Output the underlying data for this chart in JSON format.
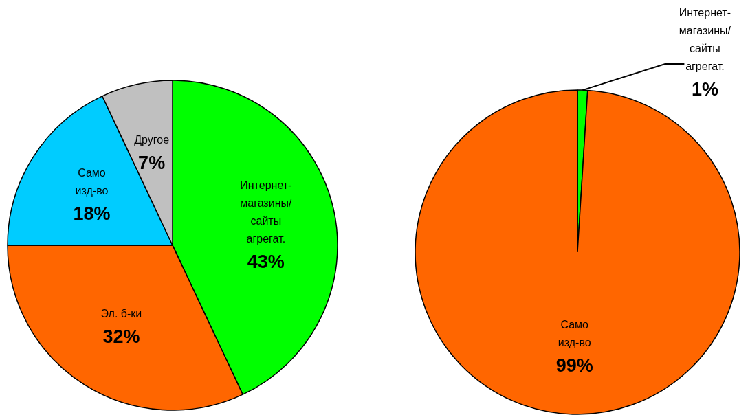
{
  "chart_data": [
    {
      "type": "pie",
      "categories": [
        "Интернет-\nмагазины/\nсайты\nагрегат.",
        "Эл. б-ки",
        "Само\nизд-во",
        "Другое"
      ],
      "values": [
        43,
        32,
        18,
        7
      ],
      "colors": [
        "#00ff00",
        "#ff6600",
        "#00ccff",
        "#c0c0c0"
      ],
      "value_labels": [
        "43%",
        "32%",
        "18%",
        "7%"
      ],
      "legend": false
    },
    {
      "type": "pie",
      "categories": [
        "Интернет-\nмагазины/\nсайты\nагрегат.",
        "Само\nизд-во"
      ],
      "values": [
        1,
        99
      ],
      "colors": [
        "#00ff00",
        "#ff6600"
      ],
      "value_labels": [
        "1%",
        "99%"
      ],
      "legend": false
    }
  ]
}
